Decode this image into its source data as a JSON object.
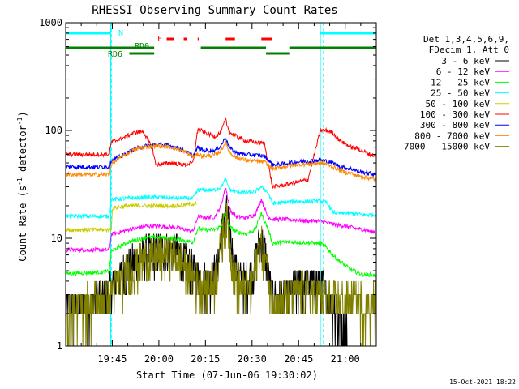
{
  "chart_data": {
    "type": "line",
    "title": "RHESSI Observing Summary Count Rates",
    "xlabel": "Start Time (07-Jun-06 19:30:02)",
    "ylabel_parts": [
      "Count Rate (s",
      "-1",
      " detector",
      "-1",
      ")"
    ],
    "y_scale": "log",
    "ylim": [
      1,
      1000
    ],
    "yticks": [
      {
        "label": "1000",
        "value": 1000
      },
      {
        "label": "100",
        "value": 100
      },
      {
        "label": "10",
        "value": 10
      },
      {
        "label": "1",
        "value": 1
      }
    ],
    "x_minutes_range": [
      1170,
      1270
    ],
    "xticks": [
      {
        "label": "19:45",
        "minute": 1185
      },
      {
        "label": "20:00",
        "minute": 1200
      },
      {
        "label": "20:15",
        "minute": 1215
      },
      {
        "label": "20:30",
        "minute": 1230
      },
      {
        "label": "20:45",
        "minute": 1245
      },
      {
        "label": "21:00",
        "minute": 1260
      }
    ],
    "legend": {
      "position": "right",
      "header": [
        "Det 1,3,4,5,6,9,",
        "FDecim 1, Att 0"
      ],
      "entries": [
        {
          "label": "3 - 6 keV",
          "color": "#000000"
        },
        {
          "label": "6 - 12 keV",
          "color": "#ff00ff"
        },
        {
          "label": "12 - 25 keV",
          "color": "#00ff00"
        },
        {
          "label": "25 - 50 keV",
          "color": "#00ffff"
        },
        {
          "label": "50 - 100 keV",
          "color": "#cccc00"
        },
        {
          "label": "100 - 300 keV",
          "color": "#ff0000"
        },
        {
          "label": "300 - 800 keV",
          "color": "#0000ff"
        },
        {
          "label": "800 - 7000 keV",
          "color": "#ff8800"
        },
        {
          "label": "7000 - 15000 keV",
          "color": "#808000"
        }
      ]
    },
    "flag_labels": {
      "night": "N",
      "flare": "F",
      "rd0": "RD0",
      "rd6": "RD6"
    },
    "night_intervals": [
      [
        1170,
        1184.5
      ],
      [
        1252,
        1270
      ]
    ],
    "flare_intervals": [
      [
        1202.5,
        1205
      ],
      [
        1208,
        1209
      ],
      [
        1212.5,
        1213
      ],
      [
        1221.5,
        1224.5
      ],
      [
        1233,
        1236.5
      ]
    ],
    "rd0_intervals": [
      [
        1170,
        1198.5
      ],
      [
        1213.5,
        1234.5
      ],
      [
        1242,
        1270
      ]
    ],
    "rd6_intervals": [
      [
        1190.5,
        1198.5
      ],
      [
        1234.5,
        1242
      ]
    ],
    "series": [
      {
        "name": "3 - 6 keV",
        "color": "#000000",
        "x": [
          1170,
          1176,
          1180,
          1184,
          1185,
          1188,
          1190,
          1193,
          1196,
          1200,
          1203,
          1206,
          1208,
          1211,
          1214,
          1216,
          1218,
          1219,
          1220,
          1221,
          1222,
          1223,
          1224,
          1226,
          1228,
          1230,
          1231,
          1232,
          1233,
          1234,
          1235,
          1236,
          1238,
          1240,
          1243,
          1246,
          1249,
          1252,
          1253,
          1254,
          1256,
          1258,
          1260,
          1262,
          1264,
          1266,
          1268,
          1270
        ],
        "y": [
          2.2,
          2.4,
          2.8,
          3,
          3.8,
          4.6,
          5.6,
          6.5,
          7.4,
          8,
          8.2,
          7.6,
          6.5,
          5,
          4.1,
          4.2,
          4.8,
          6,
          10,
          16,
          18,
          11,
          6,
          4.4,
          4,
          4.6,
          6.2,
          8.6,
          9.8,
          8,
          5.5,
          3.2,
          2.8,
          2.7,
          3.2,
          3.9,
          3.9,
          3.8,
          3.5,
          2.9,
          2.4,
          1.7,
          1.3,
          1,
          1,
          1,
          1,
          1
        ]
      },
      {
        "name": "6 - 12 keV",
        "color": "#ff00ff",
        "x": [
          1170,
          1178,
          1184,
          1184.7,
          1190,
          1196,
          1200,
          1206,
          1211,
          1212.6,
          1214,
          1218,
          1220,
          1221.5,
          1222,
          1223,
          1225,
          1228,
          1231,
          1233,
          1235,
          1236.6,
          1240,
          1244,
          1248,
          1252,
          1254,
          1256,
          1258,
          1260,
          1262,
          1264,
          1266,
          1268,
          1270
        ],
        "y": [
          7.8,
          7.8,
          7.8,
          10.8,
          12,
          13,
          13,
          12.5,
          11.6,
          16,
          15.6,
          15.8,
          20,
          30,
          25,
          18,
          15.8,
          15.5,
          16.5,
          23,
          16,
          15,
          15,
          14.8,
          14.5,
          14.4,
          14,
          13.5,
          13.2,
          13,
          12.6,
          12.2,
          12,
          11.6,
          11.4
        ]
      },
      {
        "name": "12 - 25 keV",
        "color": "#00ff00",
        "x": [
          1170,
          1178,
          1184,
          1184.7,
          1190,
          1196,
          1200,
          1206,
          1211,
          1212.6,
          1214,
          1218,
          1220,
          1221.5,
          1222,
          1223,
          1225,
          1228,
          1231,
          1233,
          1235,
          1236.6,
          1240,
          1244,
          1248,
          1252,
          1254,
          1256,
          1258,
          1260,
          1262,
          1264,
          1266,
          1268,
          1270
        ],
        "y": [
          4.7,
          4.8,
          4.9,
          7.6,
          9.2,
          10.2,
          10.2,
          9.8,
          9.2,
          12.5,
          12,
          12,
          13,
          17.5,
          15,
          12.6,
          11.5,
          11,
          12,
          17,
          12.5,
          9,
          9.2,
          9.2,
          9.1,
          9,
          8.2,
          7,
          6.2,
          5.6,
          5.1,
          4.8,
          4.6,
          4.6,
          4.5
        ]
      },
      {
        "name": "25 - 50 keV",
        "color": "#00ffff",
        "x": [
          1170,
          1178,
          1184,
          1184.7,
          1190,
          1196,
          1200,
          1206,
          1211,
          1212.6,
          1214,
          1218,
          1220,
          1221.5,
          1222,
          1223,
          1225,
          1228,
          1231,
          1233,
          1235,
          1236.6,
          1240,
          1244,
          1248,
          1252,
          1254,
          1256,
          1258,
          1260,
          1262,
          1264,
          1266,
          1268,
          1270
        ],
        "y": [
          16,
          16,
          16,
          23,
          23.5,
          24,
          24,
          23.6,
          23.4,
          28,
          28,
          28,
          30,
          35,
          32,
          28,
          27,
          26.5,
          27,
          30,
          27,
          21,
          21.5,
          22,
          22,
          22,
          21.5,
          17.5,
          17,
          17,
          17,
          16.8,
          16.5,
          16.5,
          16.5
        ]
      },
      {
        "name": "50 - 100 keV",
        "color": "#cccc00",
        "x": [
          1170,
          1184.7,
          1185,
          1190,
          1196,
          1200,
          1206,
          1212
        ],
        "y": [
          12,
          12,
          19,
          20,
          20,
          20,
          20,
          21
        ]
      },
      {
        "name": "100 - 300 keV",
        "color": "#ff0000",
        "x": [
          1170,
          1178,
          1184,
          1184.7,
          1188,
          1192,
          1195,
          1198,
          1199,
          1200,
          1201,
          1204,
          1208,
          1211,
          1212.6,
          1214,
          1218,
          1220,
          1221.5,
          1222,
          1223,
          1225,
          1228,
          1231,
          1234,
          1236.6,
          1240,
          1244,
          1248,
          1252,
          1254,
          1256,
          1258,
          1260,
          1262,
          1264,
          1266,
          1268,
          1270
        ],
        "y": [
          60,
          60,
          60,
          78,
          84,
          95,
          98,
          67,
          48,
          48,
          49,
          50,
          48,
          50,
          105,
          98,
          88,
          96,
          128,
          110,
          95,
          88,
          80,
          78,
          76,
          30,
          31,
          33,
          35,
          100,
          100,
          95,
          82,
          75,
          70,
          68,
          64,
          60,
          58
        ]
      },
      {
        "name": "300 - 800 keV",
        "color": "#0000ff",
        "x": [
          1170,
          1178,
          1184,
          1184.7,
          1188,
          1192,
          1196,
          1200,
          1204,
          1208,
          1211,
          1212.6,
          1214,
          1218,
          1220,
          1221.5,
          1222,
          1223,
          1225,
          1228,
          1231,
          1234,
          1236.6,
          1240,
          1244,
          1248,
          1252,
          1254,
          1256,
          1258,
          1260,
          1262,
          1264,
          1266,
          1268,
          1270
        ],
        "y": [
          46,
          46,
          46,
          53,
          58,
          67,
          72,
          74,
          72,
          66,
          58,
          70,
          66,
          65,
          72,
          88,
          78,
          68,
          62,
          60,
          59,
          58,
          48,
          49,
          51,
          52,
          53,
          52,
          50,
          47,
          45,
          44,
          42,
          41,
          40,
          39
        ]
      },
      {
        "name": "800 - 7000 keV",
        "color": "#ff8800",
        "x": [
          1170,
          1178,
          1184,
          1184.7,
          1188,
          1192,
          1196,
          1200,
          1204,
          1208,
          1211,
          1212.6,
          1214,
          1218,
          1220,
          1221.5,
          1222,
          1223,
          1225,
          1228,
          1231,
          1234,
          1236.6,
          1240,
          1244,
          1248,
          1252,
          1254,
          1256,
          1258,
          1260,
          1262,
          1264,
          1266,
          1268,
          1270
        ],
        "y": [
          39,
          39,
          39,
          49,
          57,
          66,
          71,
          72,
          70,
          64,
          57,
          60,
          58,
          59,
          65,
          78,
          70,
          62,
          56,
          53,
          52,
          51,
          44,
          46,
          48,
          49,
          50,
          49,
          46,
          43,
          41,
          40,
          38,
          37,
          36,
          35
        ]
      },
      {
        "name": "7000 - 15000 keV",
        "color": "#808000",
        "x": [
          1170,
          1176,
          1180,
          1184,
          1185,
          1188,
          1190,
          1193,
          1196,
          1200,
          1203,
          1206,
          1208,
          1211,
          1214,
          1216,
          1218,
          1219,
          1220,
          1221,
          1222,
          1223,
          1224,
          1226,
          1228,
          1230,
          1231,
          1232,
          1233,
          1234,
          1235,
          1236,
          1238,
          1240,
          1243,
          1246,
          1249,
          1252,
          1254,
          1256,
          1258,
          1260,
          1262,
          1264,
          1266,
          1268,
          1270
        ],
        "y": [
          1.8,
          2.5,
          2.6,
          2.8,
          3.5,
          4.2,
          5,
          5.8,
          6.6,
          7,
          7.2,
          6.8,
          5.8,
          4.5,
          3.6,
          3.7,
          4.2,
          5.5,
          9,
          14,
          15,
          9,
          5,
          3.8,
          3.3,
          3.6,
          5.5,
          8,
          9,
          7,
          5,
          2.9,
          2.6,
          2.6,
          3,
          3.5,
          3.2,
          3,
          2.8,
          2.6,
          2.6,
          2.6,
          2.6,
          2.6,
          2.6,
          2.6,
          2.6
        ]
      }
    ]
  },
  "footer": {
    "timestamp": "15-Oct-2021 18:22"
  }
}
